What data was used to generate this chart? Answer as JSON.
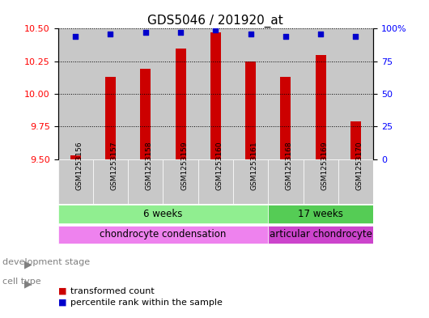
{
  "title": "GDS5046 / 201920_at",
  "samples": [
    "GSM1253156",
    "GSM1253157",
    "GSM1253158",
    "GSM1253159",
    "GSM1253160",
    "GSM1253161",
    "GSM1253168",
    "GSM1253169",
    "GSM1253170"
  ],
  "transformed_counts": [
    9.53,
    10.13,
    10.19,
    10.35,
    10.47,
    10.25,
    10.13,
    10.3,
    9.79
  ],
  "percentile_ranks": [
    94,
    96,
    97,
    97,
    99,
    96,
    94,
    96,
    94
  ],
  "ylim_left": [
    9.5,
    10.5
  ],
  "ylim_right": [
    0,
    100
  ],
  "yticks_left": [
    9.5,
    9.75,
    10.0,
    10.25,
    10.5
  ],
  "yticks_right": [
    0,
    25,
    50,
    75,
    100
  ],
  "bar_color": "#cc0000",
  "dot_color": "#0000cc",
  "bar_bottom": 9.5,
  "groups": [
    {
      "label": "6 weeks",
      "start": 0,
      "end": 5,
      "color": "#90ee90"
    },
    {
      "label": "17 weeks",
      "start": 6,
      "end": 8,
      "color": "#55cc55"
    }
  ],
  "cell_types": [
    {
      "label": "chondrocyte condensation",
      "start": 0,
      "end": 5,
      "color": "#ee82ee"
    },
    {
      "label": "articular chondrocyte",
      "start": 6,
      "end": 8,
      "color": "#cc44cc"
    }
  ],
  "dev_stage_label": "development stage",
  "cell_type_label": "cell type",
  "legend_bar_label": "transformed count",
  "legend_dot_label": "percentile rank within the sample",
  "background_color": "#ffffff",
  "sample_bg_color": "#c8c8c8",
  "left_label_color": "#808080"
}
